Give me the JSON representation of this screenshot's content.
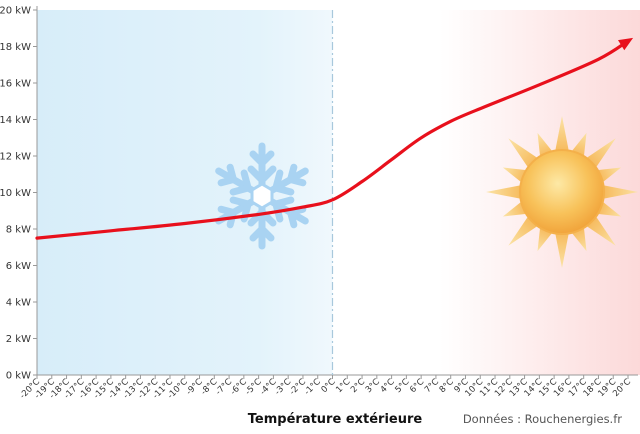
{
  "chart_data": {
    "type": "line",
    "xlabel": "Température  extérieure",
    "source": "Données : Rouchenergies.fr",
    "x_tick_labels": [
      "-20°C",
      "-19°C",
      "-18°C",
      "-17°C",
      "-16°C",
      "-15°C",
      "-14°C",
      "-13°C",
      "-12°C",
      "-11°C",
      "-10°C",
      "-9°C",
      "-8°C",
      "-7°C",
      "-6°C",
      "-5°C",
      "-4°C",
      "-3°C",
      "-2°C",
      "-1°C",
      "0°C",
      "1°C",
      "2°C",
      "3°C",
      "4°C",
      "5°C",
      "6°C",
      "7°C",
      "8°C",
      "9°C",
      "10°C",
      "11°C",
      "12°C",
      "13°C",
      "14°C",
      "15°C",
      "16°C",
      "17°C",
      "18°C",
      "19°C",
      "20°C"
    ],
    "y_tick_labels": [
      "0 kW",
      "2 kW",
      "4 kW",
      "6 kW",
      "8 kW",
      "10 kW",
      "12 kW",
      "14 kW",
      "16 kW",
      "18 kW",
      "20 kW"
    ],
    "ylim": [
      0,
      20
    ],
    "xlim": [
      -20,
      20
    ],
    "series": [
      {
        "color": "#e8101c",
        "x": [
          -20,
          -15,
          -10,
          -5,
          -2,
          0,
          2,
          4,
          6,
          8,
          10,
          14,
          18,
          20
        ],
        "y": [
          7.5,
          7.9,
          8.3,
          8.8,
          9.2,
          9.6,
          10.6,
          11.8,
          13.0,
          13.9,
          14.6,
          15.9,
          17.3,
          18.3
        ]
      }
    ],
    "zero_line": 0,
    "cold_region_color": "#d9effa",
    "warm_region_color": "#fde1e1",
    "snowflake_icon": "snowflake-icon",
    "sun_icon": "sun-icon",
    "grid": false
  }
}
